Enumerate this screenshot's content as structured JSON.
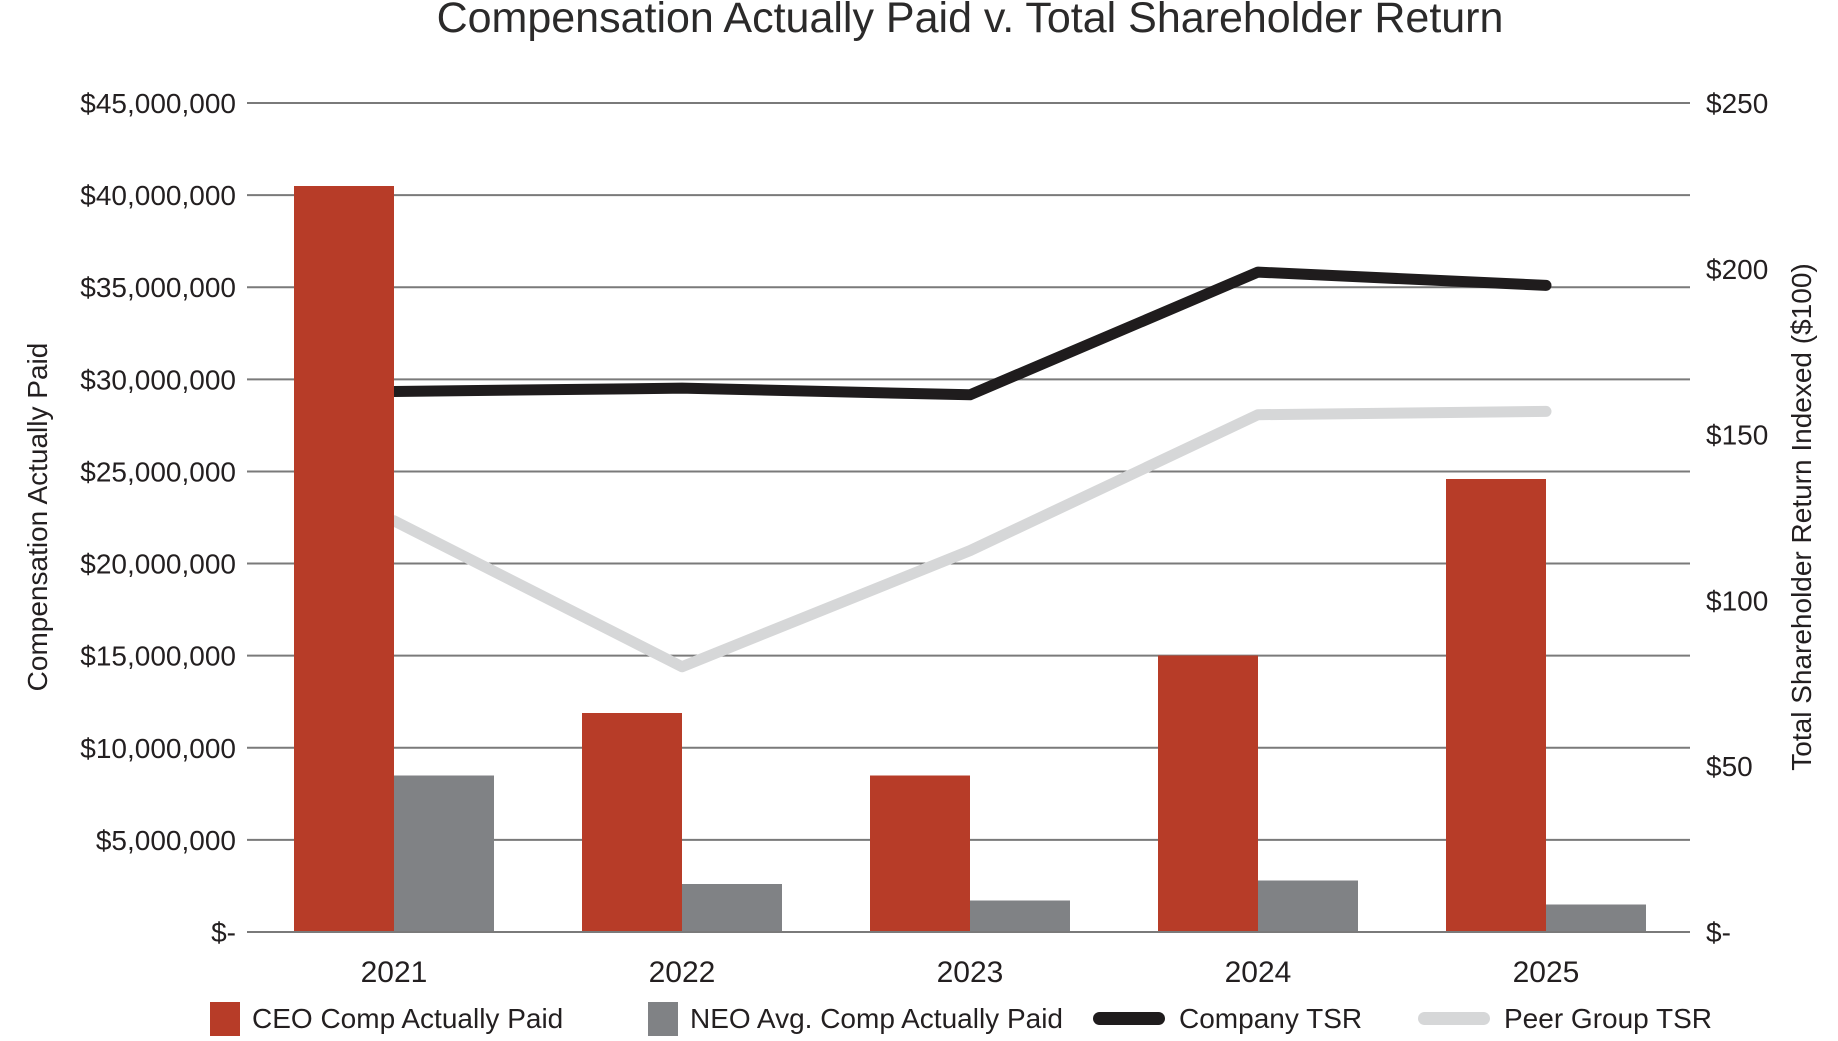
{
  "title": "Compensation Actually Paid v. Total Shareholder Return",
  "colors": {
    "background": "#ffffff",
    "text": "#231f20",
    "gridline": "#7a7a7a",
    "ceo_bar_red": "#b73c28",
    "neo_bar_gray": "#808285",
    "company_tsr_black": "#1f1c1d",
    "peer_tsr_lightgray": "#d6d7d8"
  },
  "chart_data": {
    "type": "combo-bar-line",
    "title": "Compensation Actually Paid v. Total Shareholder Return",
    "categories": [
      "2021",
      "2022",
      "2023",
      "2024",
      "2025"
    ],
    "series": [
      {
        "name": "CEO Comp Actually Paid",
        "type": "bar",
        "axis": "left",
        "color": "#b73c28",
        "values": [
          40500000,
          11900000,
          8500000,
          15000000,
          24600000
        ]
      },
      {
        "name": "NEO Avg. Comp Actually Paid",
        "type": "bar",
        "axis": "left",
        "color": "#808285",
        "values": [
          8500000,
          2600000,
          1700000,
          2800000,
          1500000
        ]
      },
      {
        "name": "Company TSR",
        "type": "line",
        "axis": "right",
        "color": "#1f1c1d",
        "values": [
          163,
          164,
          162,
          199,
          195
        ]
      },
      {
        "name": "Peer Group TSR",
        "type": "line",
        "axis": "right",
        "color": "#d6d7d8",
        "values": [
          124,
          80,
          115,
          156,
          157
        ]
      }
    ],
    "left_axis": {
      "label": "Compensation Actually Paid",
      "min": 0,
      "max": 45000000,
      "tick_step": 5000000,
      "tick_labels_top_to_bottom": [
        "$45,000,000",
        "$40,000,000",
        "$35,000,000",
        "$30,000,000",
        "$25,000,000",
        "$20,000,000",
        "$15,000,000",
        "$10,000,000",
        "$5,000,000",
        "$-"
      ]
    },
    "right_axis": {
      "label": "Total Shareholder Return Indexed ($100)",
      "min": 0,
      "max": 250,
      "tick_step": 50,
      "tick_labels_top_to_bottom": [
        "$250",
        "$200",
        "$150",
        "$100",
        "$50",
        "$-"
      ]
    },
    "grid": true,
    "legend_position": "bottom"
  }
}
